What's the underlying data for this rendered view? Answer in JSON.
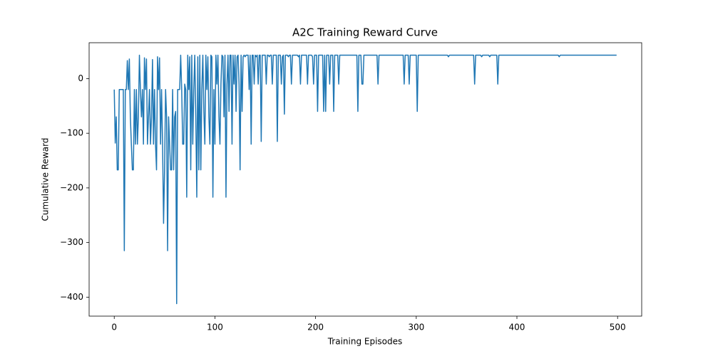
{
  "chart_data": {
    "type": "line",
    "title": "A2C Training Reward Curve",
    "x_label": "Training Episodes",
    "y_label": "Cumulative Reward",
    "color": "#1f77b4",
    "xlim": [
      -24.95,
      523.95
    ],
    "ylim": [
      -434.75,
      65.75
    ],
    "xticks": [
      0,
      100,
      200,
      300,
      400,
      500
    ],
    "yticks": [
      {
        "value": -400,
        "label": "−400"
      },
      {
        "value": -300,
        "label": "−300"
      },
      {
        "value": -200,
        "label": "−200"
      },
      {
        "value": -100,
        "label": "−100"
      },
      0
    ],
    "x": [
      0,
      1,
      2,
      3,
      4,
      5,
      6,
      7,
      8,
      9,
      10,
      11,
      12,
      13,
      14,
      15,
      16,
      17,
      18,
      19,
      20,
      21,
      22,
      23,
      24,
      25,
      26,
      27,
      28,
      29,
      30,
      31,
      32,
      33,
      34,
      35,
      36,
      37,
      38,
      39,
      40,
      41,
      42,
      43,
      44,
      45,
      46,
      47,
      48,
      49,
      50,
      51,
      52,
      53,
      54,
      55,
      56,
      57,
      58,
      59,
      60,
      61,
      62,
      63,
      64,
      65,
      66,
      67,
      68,
      69,
      70,
      71,
      72,
      73,
      74,
      75,
      76,
      77,
      78,
      79,
      80,
      81,
      82,
      83,
      84,
      85,
      86,
      87,
      88,
      89,
      90,
      91,
      92,
      93,
      94,
      95,
      96,
      97,
      98,
      99,
      100,
      101,
      102,
      103,
      104,
      105,
      106,
      107,
      108,
      109,
      110,
      111,
      112,
      113,
      114,
      115,
      116,
      117,
      118,
      119,
      120,
      121,
      122,
      123,
      124,
      125,
      126,
      127,
      128,
      129,
      130,
      131,
      132,
      133,
      134,
      135,
      136,
      137,
      138,
      139,
      140,
      141,
      142,
      143,
      144,
      145,
      146,
      147,
      148,
      149,
      150,
      151,
      152,
      153,
      154,
      155,
      156,
      157,
      158,
      159,
      160,
      161,
      162,
      163,
      164,
      165,
      166,
      167,
      168,
      169,
      170,
      171,
      172,
      173,
      174,
      175,
      176,
      177,
      178,
      179,
      180,
      181,
      182,
      183,
      184,
      185,
      186,
      187,
      188,
      189,
      190,
      191,
      192,
      193,
      194,
      195,
      196,
      197,
      198,
      199,
      200,
      201,
      202,
      203,
      204,
      205,
      206,
      207,
      208,
      209,
      210,
      211,
      212,
      213,
      214,
      215,
      216,
      217,
      218,
      219,
      220,
      221,
      222,
      223,
      224,
      225,
      226,
      227,
      228,
      229,
      230,
      231,
      232,
      233,
      234,
      235,
      236,
      237,
      238,
      239,
      240,
      241,
      242,
      243,
      244,
      245,
      246,
      247,
      248,
      249,
      250,
      251,
      252,
      253,
      254,
      255,
      256,
      257,
      258,
      259,
      260,
      261,
      262,
      263,
      264,
      265,
      266,
      267,
      268,
      269,
      270,
      271,
      272,
      273,
      274,
      275,
      276,
      277,
      278,
      279,
      280,
      281,
      282,
      283,
      284,
      285,
      286,
      287,
      288,
      289,
      290,
      291,
      292,
      293,
      294,
      295,
      296,
      297,
      298,
      299,
      300,
      301,
      302,
      303,
      304,
      305,
      306,
      307,
      308,
      309,
      310,
      311,
      312,
      313,
      314,
      315,
      316,
      317,
      318,
      319,
      320,
      321,
      322,
      323,
      324,
      325,
      326,
      327,
      328,
      329,
      330,
      331,
      332,
      333,
      334,
      335,
      336,
      337,
      338,
      339,
      340,
      341,
      342,
      343,
      344,
      345,
      346,
      347,
      348,
      349,
      350,
      351,
      352,
      353,
      354,
      355,
      356,
      357,
      358,
      359,
      360,
      361,
      362,
      363,
      364,
      365,
      366,
      367,
      368,
      369,
      370,
      371,
      372,
      373,
      374,
      375,
      376,
      377,
      378,
      379,
      380,
      381,
      382,
      383,
      384,
      385,
      386,
      387,
      388,
      389,
      390,
      391,
      392,
      393,
      394,
      395,
      396,
      397,
      398,
      399,
      400,
      401,
      402,
      403,
      404,
      405,
      406,
      407,
      408,
      409,
      410,
      411,
      412,
      413,
      414,
      415,
      416,
      417,
      418,
      419,
      420,
      421,
      422,
      423,
      424,
      425,
      426,
      427,
      428,
      429,
      430,
      431,
      432,
      433,
      434,
      435,
      436,
      437,
      438,
      439,
      440,
      441,
      442,
      443,
      444,
      445,
      446,
      447,
      448,
      449,
      450,
      451,
      452,
      453,
      454,
      455,
      456,
      457,
      458,
      459,
      460,
      461,
      462,
      463,
      464,
      465,
      466,
      467,
      468,
      469,
      470,
      471,
      472,
      473,
      474,
      475,
      476,
      477,
      478,
      479,
      480,
      481,
      482,
      483,
      484,
      485,
      486,
      487,
      488,
      489,
      490,
      491,
      492,
      493,
      494,
      495,
      496,
      497,
      498,
      499
    ],
    "values": [
      -20,
      -118,
      -70,
      -167,
      -167,
      -20,
      -20,
      -20,
      -20,
      -20,
      -315,
      -20,
      -20,
      33,
      -20,
      36,
      -70,
      -120,
      -167,
      -167,
      -20,
      -120,
      -20,
      -120,
      -70,
      43,
      -20,
      -70,
      -20,
      -120,
      38,
      -20,
      36,
      -120,
      -70,
      -20,
      -120,
      -70,
      35,
      -120,
      -20,
      -120,
      -167,
      40,
      -20,
      38,
      -120,
      -20,
      -120,
      -265,
      -167,
      -20,
      -70,
      -315,
      -70,
      -120,
      -167,
      -167,
      -20,
      -167,
      -70,
      -60,
      -412,
      -20,
      -20,
      -20,
      43,
      -20,
      -120,
      -120,
      -10,
      -20,
      -217,
      43,
      -20,
      40,
      -167,
      43,
      -120,
      -20,
      43,
      -70,
      -217,
      40,
      -167,
      43,
      -167,
      -20,
      43,
      -60,
      -120,
      43,
      -20,
      40,
      -70,
      -120,
      43,
      40,
      -217,
      -20,
      -120,
      43,
      -10,
      43,
      -70,
      -120,
      -10,
      43,
      40,
      -70,
      43,
      -217,
      -10,
      43,
      -60,
      43,
      43,
      -120,
      43,
      -10,
      43,
      -60,
      40,
      43,
      -10,
      -167,
      43,
      -60,
      40,
      43,
      40,
      43,
      43,
      43,
      -20,
      43,
      -120,
      43,
      43,
      -10,
      43,
      40,
      43,
      -10,
      43,
      43,
      -115,
      43,
      43,
      43,
      43,
      -10,
      43,
      43,
      40,
      43,
      43,
      -10,
      43,
      43,
      43,
      43,
      -115,
      43,
      43,
      43,
      -10,
      40,
      43,
      -65,
      43,
      43,
      43,
      40,
      43,
      43,
      -10,
      43,
      43,
      43,
      43,
      43,
      43,
      40,
      43,
      -10,
      43,
      43,
      43,
      43,
      43,
      43,
      -10,
      43,
      43,
      43,
      43,
      40,
      -10,
      43,
      43,
      43,
      -60,
      43,
      43,
      43,
      43,
      43,
      -60,
      43,
      -60,
      43,
      43,
      43,
      -10,
      43,
      43,
      43,
      -60,
      43,
      43,
      43,
      43,
      -10,
      43,
      43,
      43,
      43,
      43,
      43,
      43,
      43,
      43,
      43,
      43,
      43,
      43,
      43,
      43,
      43,
      43,
      43,
      -60,
      43,
      43,
      43,
      -10,
      -10,
      43,
      43,
      43,
      43,
      43,
      43,
      43,
      43,
      43,
      43,
      43,
      43,
      43,
      43,
      -10,
      43,
      43,
      43,
      43,
      43,
      43,
      43,
      43,
      43,
      43,
      43,
      43,
      43,
      43,
      43,
      43,
      43,
      43,
      43,
      43,
      43,
      43,
      43,
      43,
      43,
      -10,
      43,
      43,
      43,
      43,
      -10,
      43,
      43,
      43,
      43,
      43,
      43,
      43,
      -60,
      43,
      43,
      43,
      43,
      43,
      43,
      43,
      43,
      43,
      43,
      43,
      43,
      43,
      43,
      43,
      43,
      43,
      43,
      43,
      43,
      43,
      43,
      43,
      43,
      43,
      43,
      43,
      43,
      43,
      43,
      40,
      43,
      43,
      43,
      43,
      43,
      43,
      43,
      43,
      43,
      43,
      43,
      43,
      43,
      43,
      43,
      43,
      43,
      43,
      43,
      43,
      43,
      43,
      43,
      43,
      43,
      -10,
      43,
      43,
      43,
      43,
      43,
      43,
      40,
      43,
      43,
      43,
      43,
      43,
      43,
      43,
      40,
      43,
      43,
      43,
      43,
      43,
      43,
      43,
      -10,
      43,
      43,
      43,
      43,
      43,
      43,
      43,
      43,
      43,
      43,
      43,
      43,
      43,
      43,
      43,
      43,
      43,
      43,
      43,
      43,
      43,
      43,
      43,
      43,
      43,
      43,
      43,
      43,
      43,
      43,
      43,
      43,
      43,
      43,
      43,
      43,
      43,
      43,
      43,
      43,
      43,
      43,
      43,
      43,
      43,
      43,
      43,
      43,
      43,
      43,
      43,
      43,
      43,
      43,
      43,
      43,
      43,
      43,
      43,
      43,
      40,
      43,
      43,
      43,
      43,
      43,
      43,
      43,
      43,
      43,
      43,
      43,
      43,
      43,
      43,
      43,
      43,
      43,
      43,
      43,
      43,
      43,
      43,
      43,
      43,
      43,
      43,
      43,
      43,
      43,
      43,
      43,
      43,
      43,
      43,
      43,
      43,
      43,
      43,
      43,
      43,
      43,
      43,
      43,
      43,
      43,
      43,
      43,
      43,
      43,
      43,
      43,
      43,
      43,
      43,
      43,
      43,
      43
    ]
  }
}
